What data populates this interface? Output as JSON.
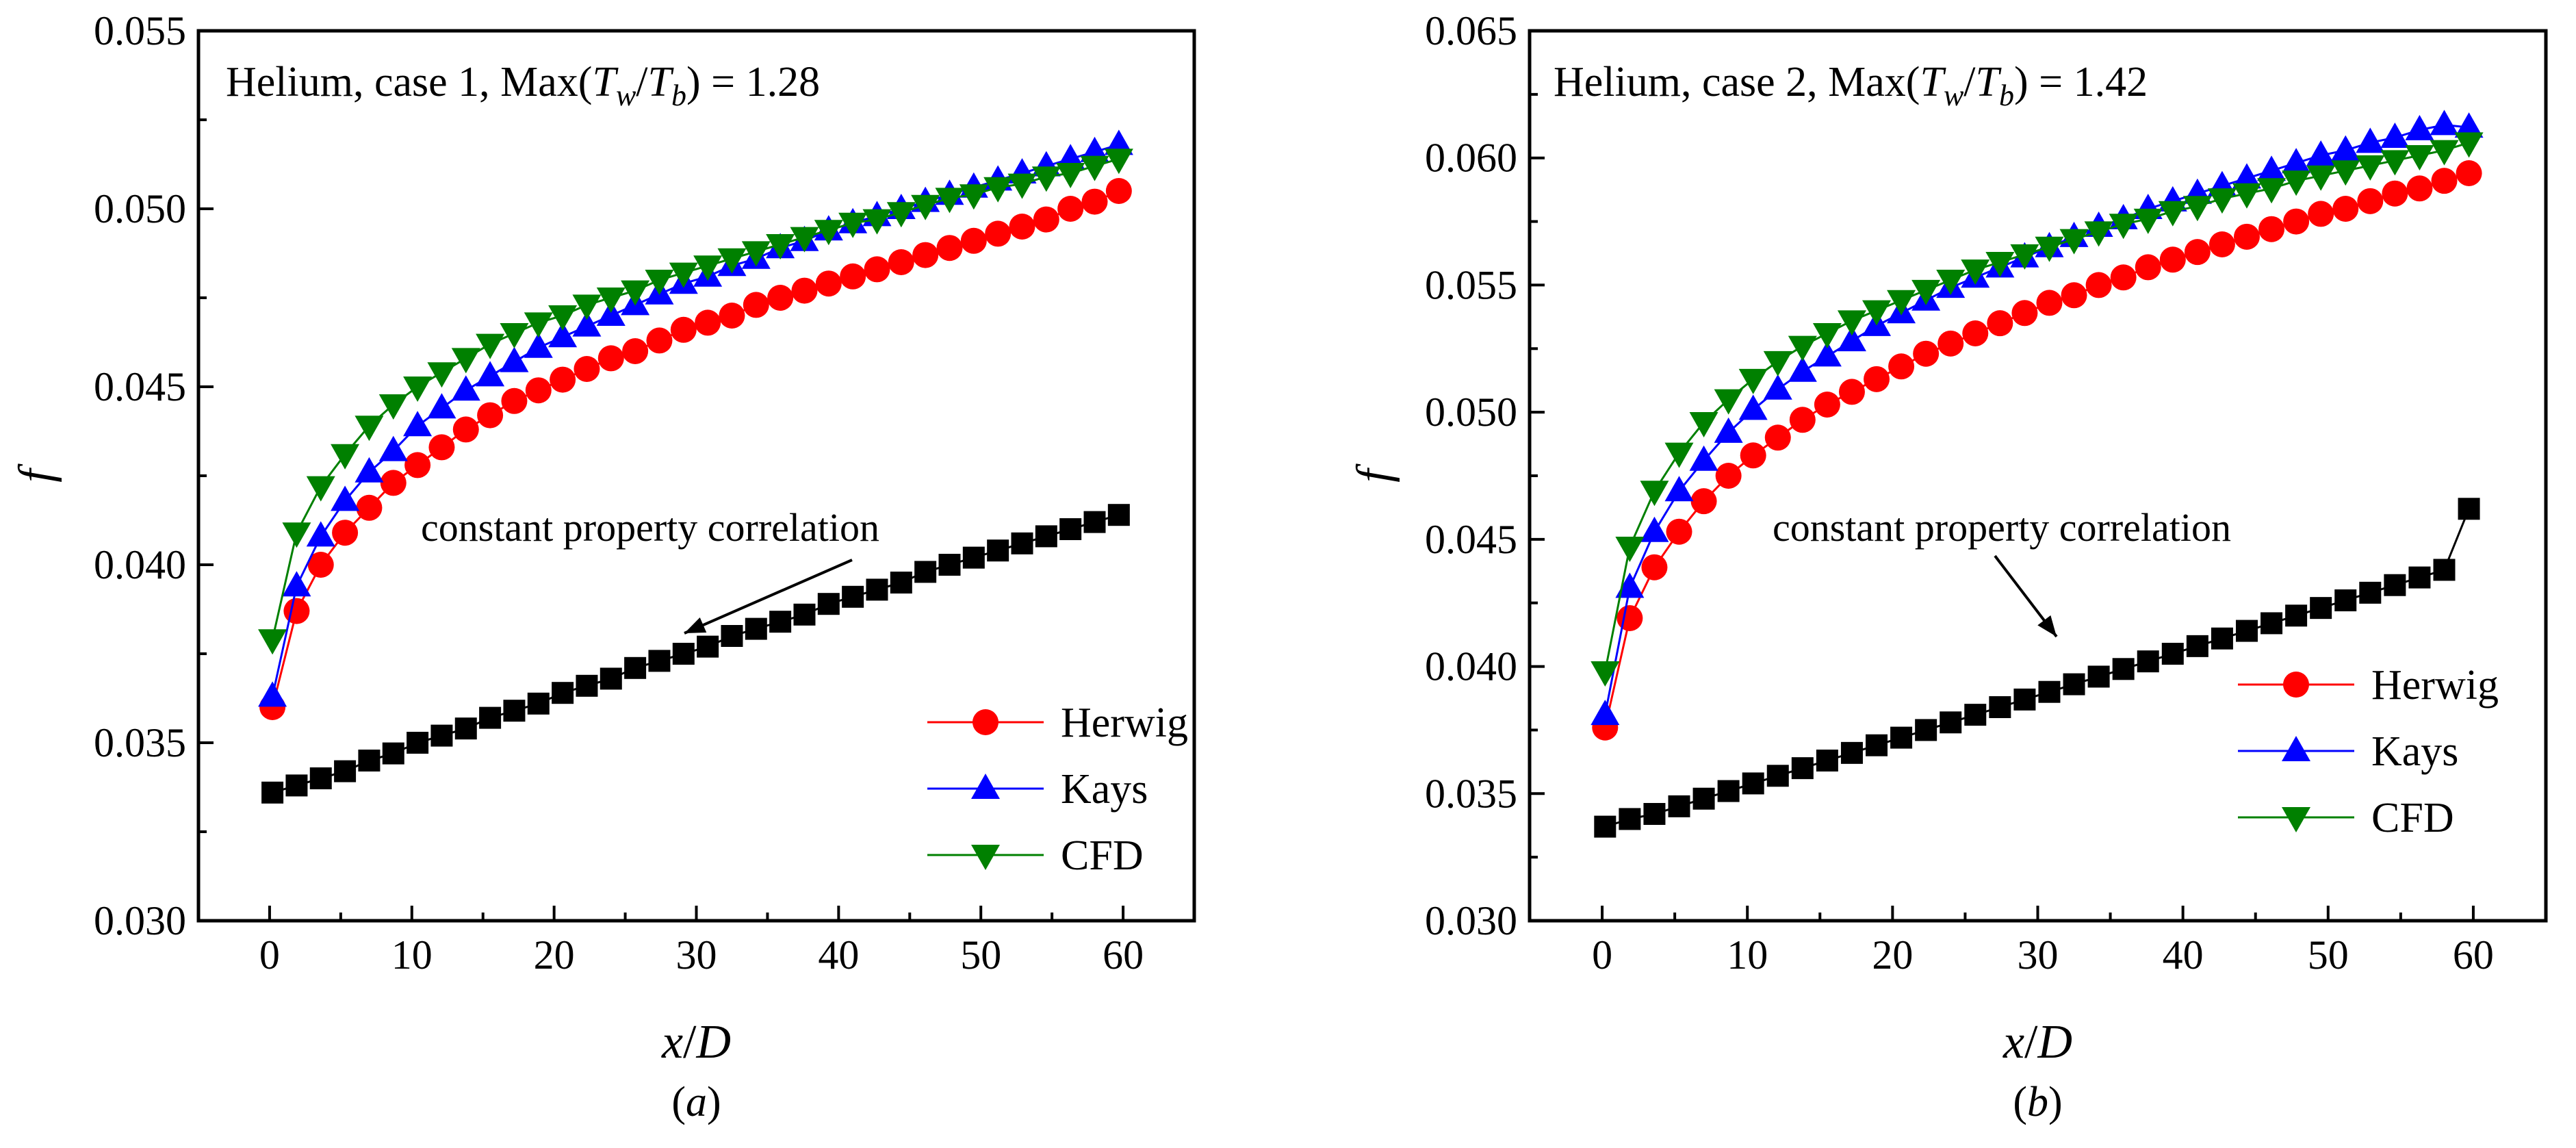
{
  "chart_data": [
    {
      "type": "line",
      "panel": "a",
      "caption": "(a)",
      "title": {
        "prefix": "Helium, case 1, Max(",
        "t1": "T",
        "s1": "w",
        "slash": "/",
        "t2": "T",
        "s2": "b",
        "suffix": ") = 1.28"
      },
      "xlabel": {
        "var": "x",
        "slash": "/",
        "var2": "D"
      },
      "ylabel": "f",
      "xlim": [
        -5,
        65
      ],
      "ylim": [
        0.03,
        0.055
      ],
      "xticks": [
        "0",
        "10",
        "20",
        "30",
        "40",
        "50",
        "60"
      ],
      "yticks": [
        "0.030",
        "0.035",
        "0.040",
        "0.045",
        "0.050",
        "0.055"
      ],
      "legend": [
        "Herwig",
        "Kays",
        "CFD"
      ],
      "annotation": "constant property correlation",
      "x": [
        0.2,
        1.9,
        3.6,
        5.3,
        7.0,
        8.7,
        10.4,
        12.1,
        13.8,
        15.5,
        17.2,
        18.9,
        20.6,
        22.3,
        24.0,
        25.7,
        27.4,
        29.1,
        30.8,
        32.5,
        34.2,
        35.9,
        37.6,
        39.3,
        41.0,
        42.7,
        44.4,
        46.1,
        47.8,
        49.5,
        51.2,
        52.9,
        54.6,
        56.3,
        58.0,
        59.7
      ],
      "series": [
        {
          "name": "Herwig",
          "color": "#ff0000",
          "marker": "circle",
          "values": [
            0.036,
            0.0387,
            0.04,
            0.0409,
            0.0416,
            0.0423,
            0.0428,
            0.0433,
            0.0438,
            0.0442,
            0.0446,
            0.0449,
            0.0452,
            0.0455,
            0.0458,
            0.046,
            0.0463,
            0.0466,
            0.0468,
            0.047,
            0.0473,
            0.0475,
            0.0477,
            0.0479,
            0.0481,
            0.0483,
            0.0485,
            0.0487,
            0.0489,
            0.0491,
            0.0493,
            0.0495,
            0.0497,
            0.05,
            0.0502,
            0.0505
          ]
        },
        {
          "name": "Kays",
          "color": "#0000ff",
          "marker": "triangle-up",
          "values": [
            0.0363,
            0.0394,
            0.0408,
            0.0418,
            0.0426,
            0.0432,
            0.0439,
            0.0444,
            0.0449,
            0.0453,
            0.0457,
            0.0461,
            0.0464,
            0.0467,
            0.047,
            0.0473,
            0.0476,
            0.0479,
            0.0481,
            0.0484,
            0.0486,
            0.0489,
            0.0491,
            0.0494,
            0.0496,
            0.0498,
            0.05,
            0.0502,
            0.0504,
            0.0506,
            0.0508,
            0.051,
            0.0512,
            0.0514,
            0.0516,
            0.0518
          ]
        },
        {
          "name": "CFD",
          "color": "#008000",
          "marker": "triangle-down",
          "values": [
            0.0379,
            0.0409,
            0.0422,
            0.0431,
            0.0439,
            0.0445,
            0.045,
            0.0454,
            0.0458,
            0.0462,
            0.0465,
            0.0468,
            0.047,
            0.0473,
            0.0475,
            0.0477,
            0.048,
            0.0482,
            0.0484,
            0.0486,
            0.0488,
            0.049,
            0.0492,
            0.0494,
            0.0496,
            0.0497,
            0.0499,
            0.0501,
            0.0503,
            0.0504,
            0.0506,
            0.0507,
            0.0509,
            0.051,
            0.0512,
            0.0514
          ]
        },
        {
          "name": "constant property correlation",
          "color": "#000000",
          "marker": "square",
          "values": [
            0.0336,
            0.0338,
            0.034,
            0.0342,
            0.0345,
            0.0347,
            0.035,
            0.0352,
            0.0354,
            0.0357,
            0.0359,
            0.0361,
            0.0364,
            0.0366,
            0.0368,
            0.0371,
            0.0373,
            0.0375,
            0.0377,
            0.038,
            0.0382,
            0.0384,
            0.0386,
            0.0389,
            0.0391,
            0.0393,
            0.0395,
            0.0398,
            0.04,
            0.0402,
            0.0404,
            0.0406,
            0.0408,
            0.041,
            0.0412,
            0.0414
          ]
        }
      ]
    },
    {
      "type": "line",
      "panel": "b",
      "caption": "(b)",
      "title": {
        "prefix": "Helium, case 2, Max(",
        "t1": "T",
        "s1": "w",
        "slash": "/",
        "t2": "T",
        "s2": "b",
        "suffix": ") = 1.42"
      },
      "xlabel": {
        "var": "x",
        "slash": "/",
        "var2": "D"
      },
      "ylabel": "f",
      "xlim": [
        -5,
        65
      ],
      "ylim": [
        0.03,
        0.065
      ],
      "xticks": [
        "0",
        "10",
        "20",
        "30",
        "40",
        "50",
        "60"
      ],
      "yticks": [
        "0.030",
        "0.035",
        "0.040",
        "0.045",
        "0.050",
        "0.055",
        "0.060",
        "0.065"
      ],
      "legend": [
        "Herwig",
        "Kays",
        "CFD"
      ],
      "annotation": "constant property correlation",
      "x": [
        0.2,
        1.9,
        3.6,
        5.3,
        7.0,
        8.7,
        10.4,
        12.1,
        13.8,
        15.5,
        17.2,
        18.9,
        20.6,
        22.3,
        24.0,
        25.7,
        27.4,
        29.1,
        30.8,
        32.5,
        34.2,
        35.9,
        37.6,
        39.3,
        41.0,
        42.7,
        44.4,
        46.1,
        47.8,
        49.5,
        51.2,
        52.9,
        54.6,
        56.3,
        58.0,
        59.7
      ],
      "series": [
        {
          "name": "Herwig",
          "color": "#ff0000",
          "marker": "circle",
          "values": [
            0.0376,
            0.0419,
            0.0439,
            0.0453,
            0.0465,
            0.0475,
            0.0483,
            0.049,
            0.0497,
            0.0503,
            0.0508,
            0.0513,
            0.0518,
            0.0523,
            0.0527,
            0.0531,
            0.0535,
            0.0539,
            0.0543,
            0.0546,
            0.055,
            0.0553,
            0.0557,
            0.056,
            0.0563,
            0.0566,
            0.0569,
            0.0572,
            0.0575,
            0.0578,
            0.058,
            0.0583,
            0.0586,
            0.0588,
            0.0591,
            0.0594
          ]
        },
        {
          "name": "Kays",
          "color": "#0000ff",
          "marker": "triangle-up",
          "values": [
            0.0381,
            0.0431,
            0.0453,
            0.0469,
            0.0481,
            0.0492,
            0.0501,
            0.0509,
            0.0516,
            0.0522,
            0.0528,
            0.0534,
            0.0539,
            0.0544,
            0.0549,
            0.0553,
            0.0557,
            0.0561,
            0.0565,
            0.0569,
            0.0573,
            0.0576,
            0.058,
            0.0583,
            0.0586,
            0.0589,
            0.0592,
            0.0595,
            0.0598,
            0.0601,
            0.0603,
            0.0606,
            0.0608,
            0.0611,
            0.0613,
            0.0612
          ]
        },
        {
          "name": "CFD",
          "color": "#008000",
          "marker": "triangle-down",
          "values": [
            0.0398,
            0.0447,
            0.0469,
            0.0484,
            0.0496,
            0.0505,
            0.0513,
            0.052,
            0.0526,
            0.0531,
            0.0536,
            0.054,
            0.0544,
            0.0548,
            0.0552,
            0.0556,
            0.0559,
            0.0562,
            0.0565,
            0.0568,
            0.0571,
            0.0574,
            0.0576,
            0.0579,
            0.0581,
            0.0584,
            0.0586,
            0.0588,
            0.0591,
            0.0593,
            0.0595,
            0.0597,
            0.0599,
            0.0601,
            0.0603,
            0.0606
          ]
        },
        {
          "name": "constant property correlation",
          "color": "#000000",
          "marker": "square",
          "values": [
            0.0337,
            0.034,
            0.0342,
            0.0345,
            0.0348,
            0.0351,
            0.0354,
            0.0357,
            0.036,
            0.0363,
            0.0366,
            0.0369,
            0.0372,
            0.0375,
            0.0378,
            0.0381,
            0.0384,
            0.0387,
            0.039,
            0.0393,
            0.0396,
            0.0399,
            0.0402,
            0.0405,
            0.0408,
            0.0411,
            0.0414,
            0.0417,
            0.042,
            0.0423,
            0.0426,
            0.0429,
            0.0432,
            0.0435,
            0.0438,
            0.0462
          ]
        }
      ]
    }
  ]
}
